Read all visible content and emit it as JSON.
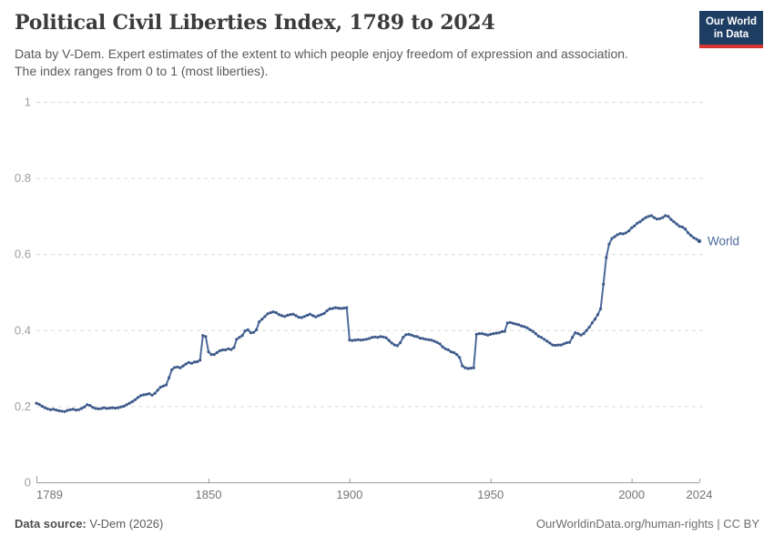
{
  "header": {
    "title": "Political Civil Liberties Index, 1789 to 2024",
    "subtitle": [
      "Data by V-Dem. Expert estimates of the extent to which people enjoy freedom of expression and association.",
      "The index ranges from 0 to 1 (most liberties)."
    ],
    "logo": [
      "Our World",
      "in Data"
    ]
  },
  "footer": {
    "source_label": "Data source:",
    "source_value": " V-Dem (2026)",
    "right": "OurWorldinData.org/human-rights | CC BY"
  },
  "chart_data": {
    "type": "line",
    "title": "Political Civil Liberties Index, 1789 to 2024",
    "xlabel": "",
    "ylabel": "",
    "xlim": [
      1789,
      2024
    ],
    "ylim": [
      0,
      1
    ],
    "x_ticks": [
      1789,
      1850,
      1900,
      1950,
      2000,
      2024
    ],
    "y_ticks": [
      0,
      0.2,
      0.4,
      0.6,
      0.8,
      1
    ],
    "grid": true,
    "legend_position": "end-of-line-label",
    "colors": {
      "line": "#4c6a9c",
      "marker": "#3d5a8a",
      "grid": "#dcdcdc",
      "axis": "#9e9e9e",
      "x_tick_text": "#757575",
      "y_tick_text": "#9e9e9e",
      "series_label": "#4c6a9c"
    },
    "series": [
      {
        "name": "World",
        "start_year": 1789,
        "end_year": 2024,
        "values": [
          0.208,
          0.205,
          0.2,
          0.196,
          0.193,
          0.191,
          0.192,
          0.19,
          0.188,
          0.187,
          0.186,
          0.189,
          0.191,
          0.192,
          0.19,
          0.191,
          0.194,
          0.198,
          0.204,
          0.202,
          0.197,
          0.194,
          0.193,
          0.194,
          0.196,
          0.194,
          0.195,
          0.196,
          0.195,
          0.196,
          0.198,
          0.2,
          0.204,
          0.208,
          0.212,
          0.217,
          0.223,
          0.228,
          0.23,
          0.231,
          0.233,
          0.229,
          0.234,
          0.242,
          0.25,
          0.253,
          0.256,
          0.275,
          0.296,
          0.302,
          0.303,
          0.301,
          0.306,
          0.311,
          0.315,
          0.313,
          0.316,
          0.317,
          0.321,
          0.386,
          0.383,
          0.343,
          0.336,
          0.336,
          0.341,
          0.346,
          0.348,
          0.348,
          0.351,
          0.349,
          0.354,
          0.376,
          0.381,
          0.386,
          0.398,
          0.401,
          0.393,
          0.394,
          0.401,
          0.422,
          0.429,
          0.436,
          0.443,
          0.446,
          0.448,
          0.446,
          0.441,
          0.438,
          0.436,
          0.439,
          0.441,
          0.442,
          0.438,
          0.434,
          0.433,
          0.436,
          0.439,
          0.442,
          0.438,
          0.435,
          0.438,
          0.441,
          0.444,
          0.451,
          0.456,
          0.457,
          0.459,
          0.458,
          0.457,
          0.458,
          0.459,
          0.374,
          0.373,
          0.374,
          0.375,
          0.374,
          0.375,
          0.376,
          0.378,
          0.381,
          0.382,
          0.381,
          0.383,
          0.382,
          0.38,
          0.373,
          0.366,
          0.361,
          0.359,
          0.367,
          0.381,
          0.388,
          0.389,
          0.387,
          0.384,
          0.383,
          0.379,
          0.378,
          0.376,
          0.375,
          0.374,
          0.371,
          0.368,
          0.364,
          0.356,
          0.351,
          0.348,
          0.343,
          0.341,
          0.336,
          0.328,
          0.306,
          0.301,
          0.299,
          0.3,
          0.301,
          0.389,
          0.391,
          0.391,
          0.389,
          0.387,
          0.389,
          0.391,
          0.392,
          0.393,
          0.396,
          0.397,
          0.419,
          0.42,
          0.418,
          0.416,
          0.414,
          0.411,
          0.409,
          0.406,
          0.401,
          0.397,
          0.391,
          0.384,
          0.381,
          0.376,
          0.371,
          0.366,
          0.361,
          0.36,
          0.361,
          0.361,
          0.364,
          0.367,
          0.368,
          0.381,
          0.393,
          0.391,
          0.387,
          0.391,
          0.399,
          0.408,
          0.419,
          0.429,
          0.441,
          0.456,
          0.521,
          0.591,
          0.626,
          0.641,
          0.646,
          0.651,
          0.654,
          0.653,
          0.656,
          0.661,
          0.669,
          0.674,
          0.681,
          0.685,
          0.691,
          0.696,
          0.699,
          0.701,
          0.696,
          0.692,
          0.693,
          0.696,
          0.701,
          0.699,
          0.691,
          0.685,
          0.679,
          0.673,
          0.671,
          0.666,
          0.656,
          0.649,
          0.643,
          0.639,
          0.634
        ]
      }
    ]
  }
}
